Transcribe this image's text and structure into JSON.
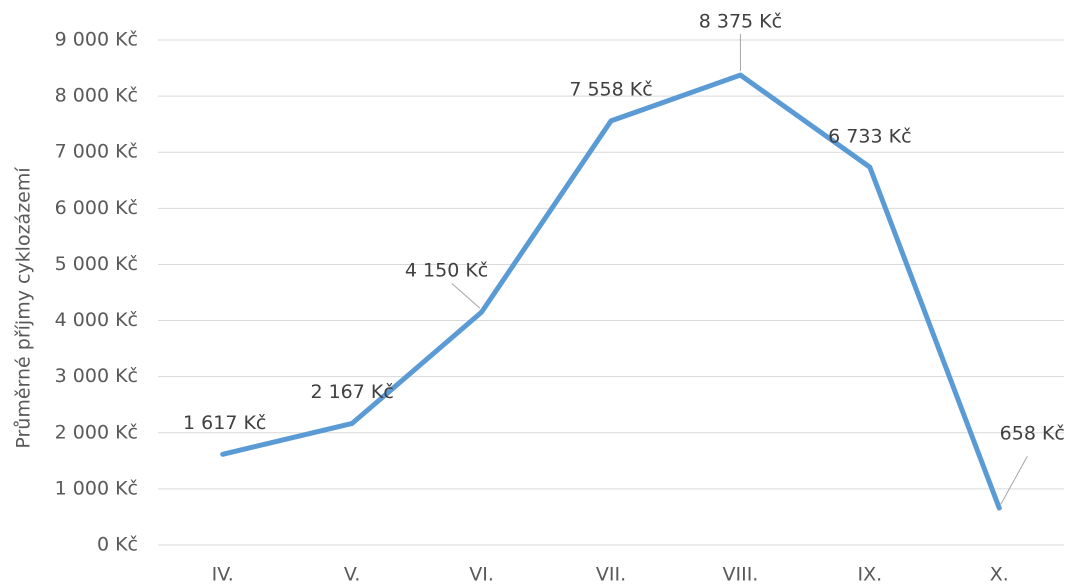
{
  "chart_data": {
    "type": "line",
    "y_label": "Průměrné příjmy cyklozázemí",
    "categories": [
      "IV.",
      "V.",
      "VI.",
      "VII.",
      "VIII.",
      "IX.",
      "X."
    ],
    "series": [
      {
        "name": "Průměrné příjmy",
        "color": "#5b9bd5",
        "values": [
          1617,
          2167,
          4150,
          7558,
          8375,
          6733,
          658
        ],
        "value_labels": [
          "1 617 Kč",
          "2 167 Kč",
          "4 150 Kč",
          "7 558 Kč",
          "8 375 Kč",
          "6 733 Kč",
          "658 Kč"
        ]
      }
    ],
    "ylim": [
      0,
      9000
    ],
    "yticks": [
      {
        "value": 0,
        "label": "0 Kč"
      },
      {
        "value": 1000,
        "label": "1 000 Kč"
      },
      {
        "value": 2000,
        "label": "2 000 Kč"
      },
      {
        "value": 3000,
        "label": "3 000 Kč"
      },
      {
        "value": 4000,
        "label": "4 000 Kč"
      },
      {
        "value": 5000,
        "label": "5 000 Kč"
      },
      {
        "value": 6000,
        "label": "6 000 Kč"
      },
      {
        "value": 7000,
        "label": "7 000 Kč"
      },
      {
        "value": 8000,
        "label": "8 000 Kč"
      },
      {
        "value": 9000,
        "label": "9 000 Kč"
      }
    ],
    "grid": true
  }
}
